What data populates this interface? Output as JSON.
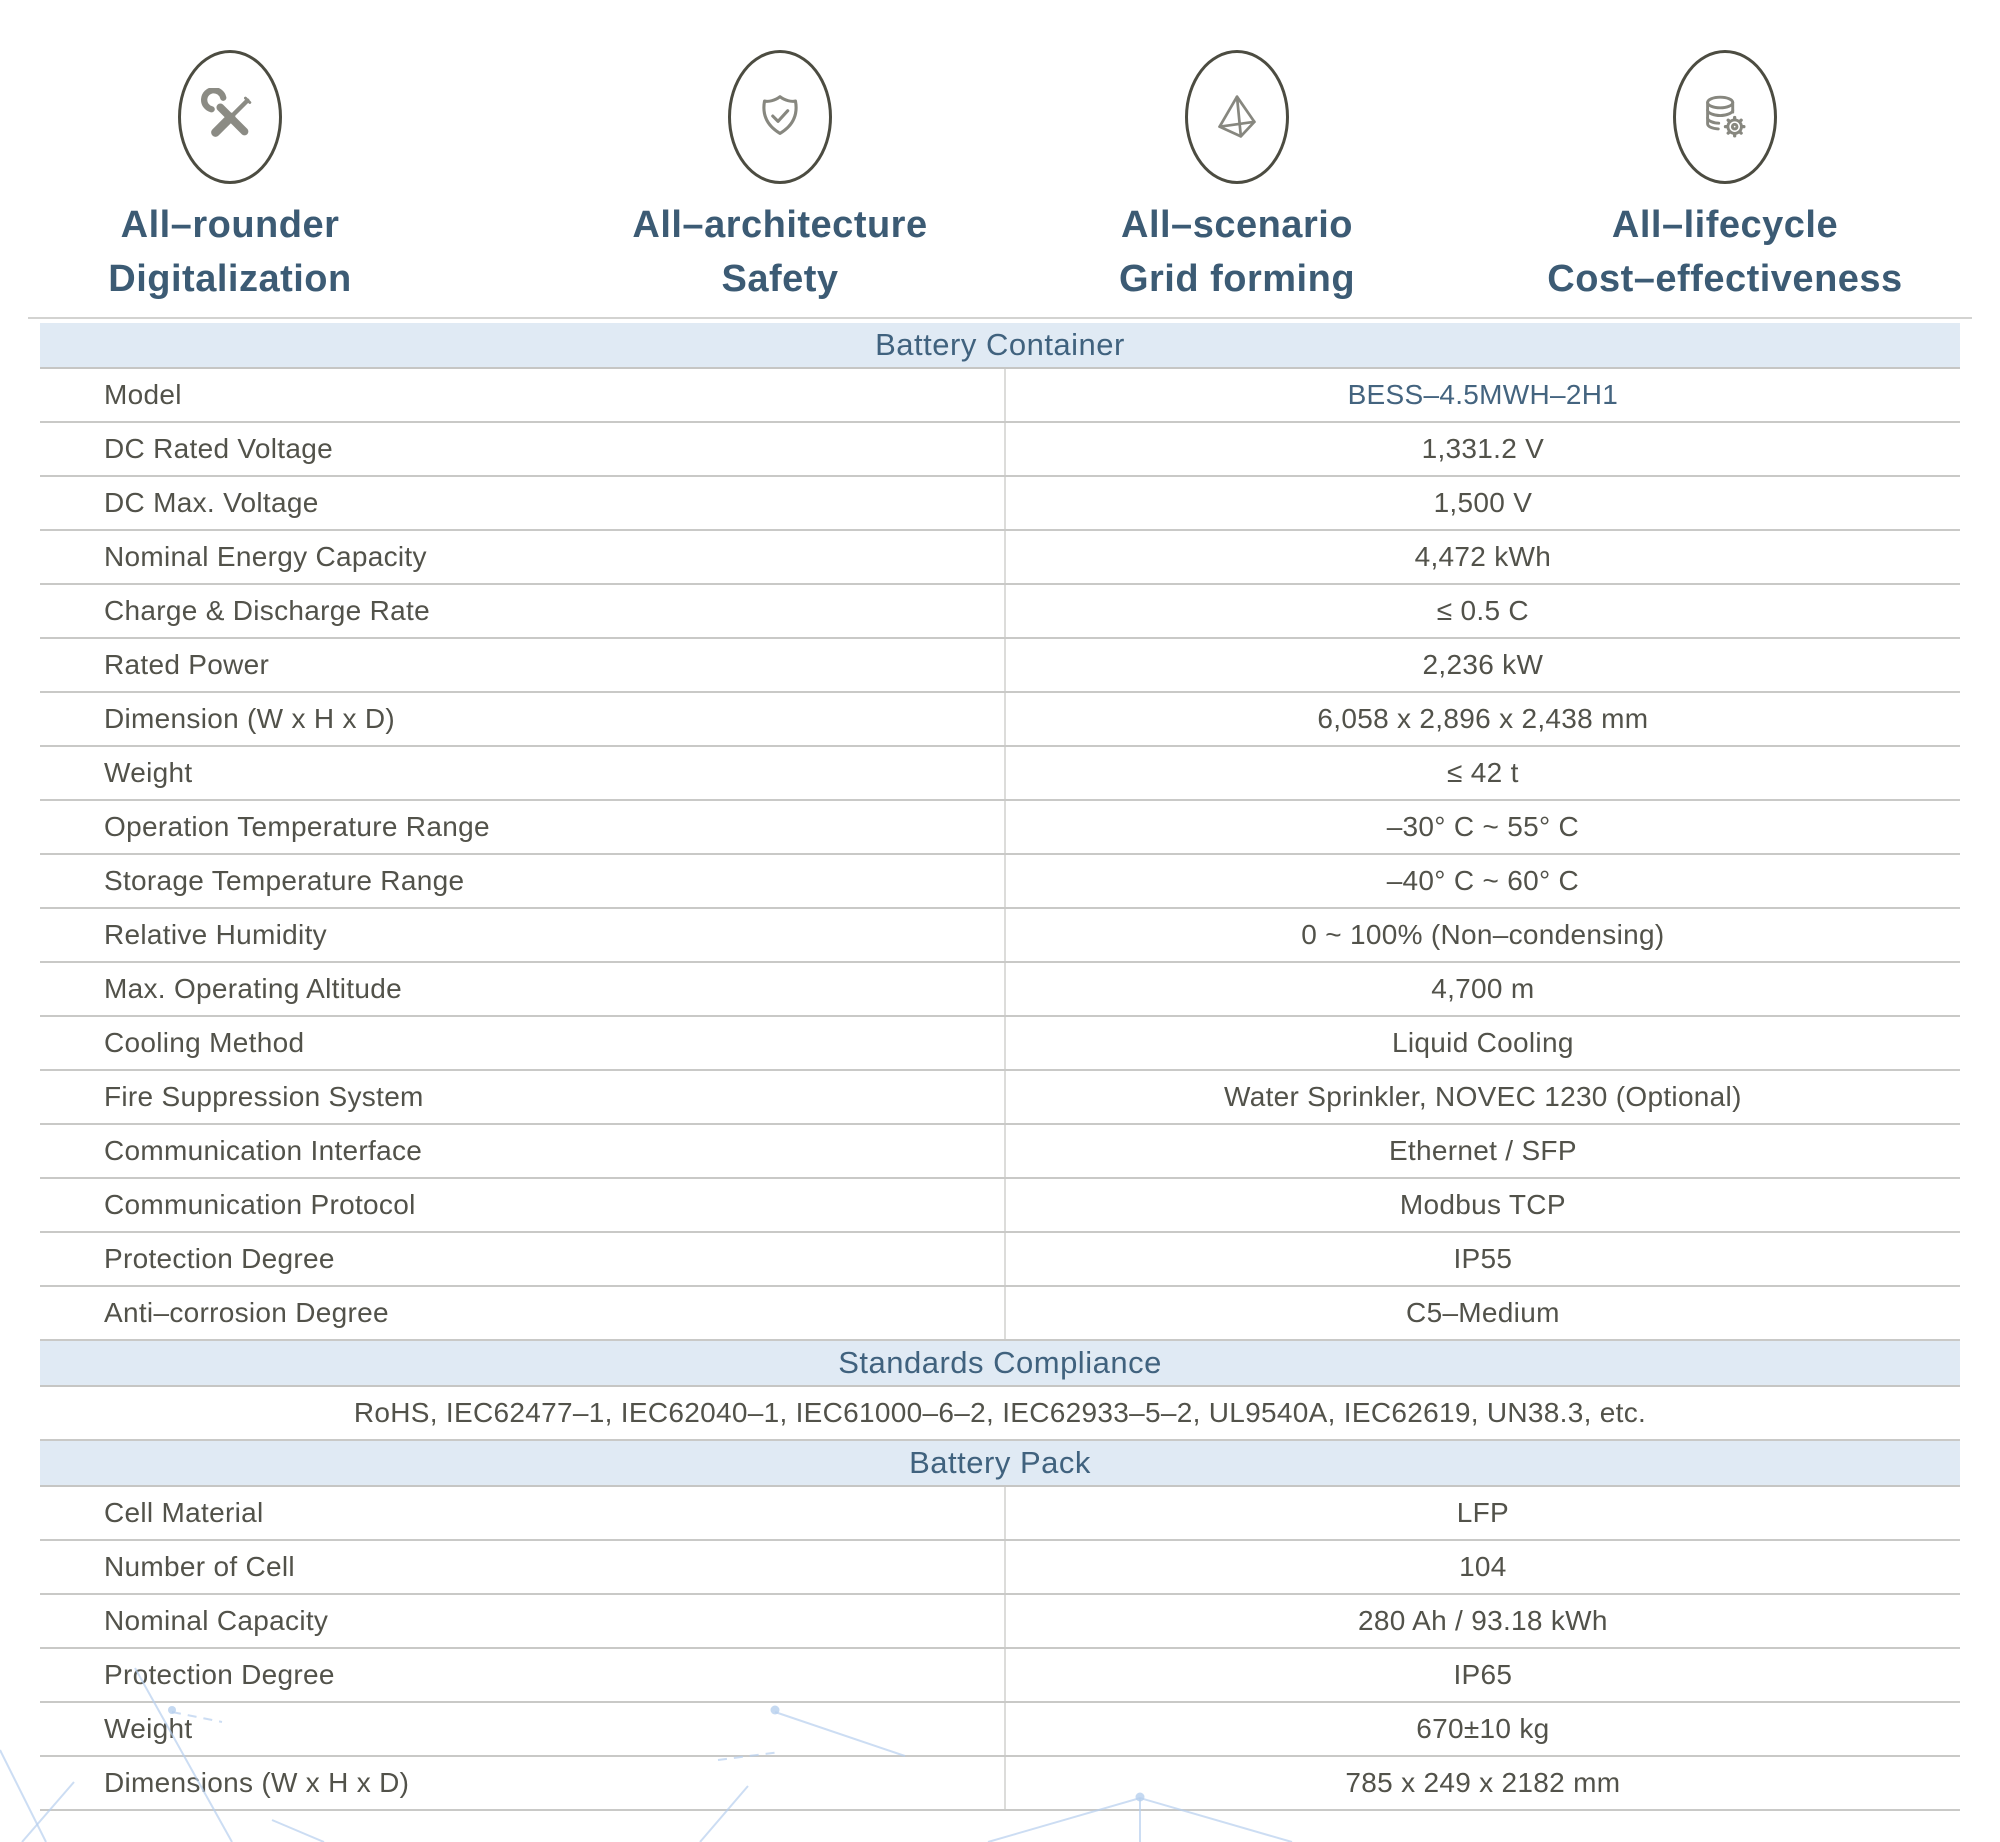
{
  "features": [
    {
      "icon": "shield-check-icon",
      "line1": "All–architecture",
      "line2": "Safety"
    },
    {
      "icon": "pyramid-icon",
      "line1": "All–scenario",
      "line2": "Grid forming"
    },
    {
      "icon": "database-gear-icon",
      "line1": "All–lifecycle",
      "line2": "Cost–effectiveness"
    },
    {
      "icon": "tools-icon",
      "line1": "All–rounder",
      "line2": "Digitalization"
    }
  ],
  "table": {
    "sections": [
      {
        "type": "header",
        "title": "Battery Container"
      },
      {
        "type": "rows",
        "rows": [
          {
            "label": "Model",
            "value": "BESS–4.5MWH–2H1",
            "highlight": true
          },
          {
            "label": "DC Rated Voltage",
            "value": "1,331.2 V"
          },
          {
            "label": "DC Max. Voltage",
            "value": "1,500 V"
          },
          {
            "label": "Nominal Energy Capacity",
            "value": "4,472 kWh"
          },
          {
            "label": "Charge & Discharge Rate",
            "value": "≤ 0.5 C"
          },
          {
            "label": "Rated Power",
            "value": "2,236 kW"
          },
          {
            "label": "Dimension (W x H x D)",
            "value": "6,058 x 2,896 x 2,438 mm"
          },
          {
            "label": "Weight",
            "value": "≤ 42 t"
          },
          {
            "label": "Operation Temperature Range",
            "value": "–30° C ~ 55° C"
          },
          {
            "label": "Storage Temperature Range",
            "value": "–40° C ~ 60° C"
          },
          {
            "label": "Relative Humidity",
            "value": "0 ~ 100% (Non–condensing)"
          },
          {
            "label": "Max. Operating Altitude",
            "value": "4,700 m"
          },
          {
            "label": "Cooling Method",
            "value": "Liquid Cooling"
          },
          {
            "label": "Fire Suppression System",
            "value": "Water Sprinkler, NOVEC 1230 (Optional)"
          },
          {
            "label": "Communication Interface",
            "value": "Ethernet / SFP"
          },
          {
            "label": "Communication Protocol",
            "value": "Modbus TCP"
          },
          {
            "label": "Protection Degree",
            "value": "IP55"
          },
          {
            "label": "Anti–corrosion Degree",
            "value": "C5–Medium"
          }
        ]
      },
      {
        "type": "header",
        "title": "Standards Compliance"
      },
      {
        "type": "text",
        "text": "RoHS, IEC62477–1, IEC62040–1, IEC61000–6–2, IEC62933–5–2, UL9540A, IEC62619, UN38.3, etc."
      },
      {
        "type": "header",
        "title": "Battery Pack"
      },
      {
        "type": "rows",
        "rows": [
          {
            "label": "Cell Material",
            "value": "LFP"
          },
          {
            "label": "Number of Cell",
            "value": "104"
          },
          {
            "label": "Nominal Capacity",
            "value": "280 Ah / 93.18 kWh"
          },
          {
            "label": "Protection Degree",
            "value": "IP65"
          },
          {
            "label": "Weight",
            "value": "670±10 kg"
          },
          {
            "label": "Dimensions (W x H x D)",
            "value": "785 x 249 x 2182 mm"
          }
        ]
      }
    ]
  },
  "colors": {
    "accent_blue": "#3c5b74",
    "header_band_bg": "#e0eaf4",
    "header_band_text": "#40627e",
    "row_text": "#52524a",
    "model_value_text": "#44647f",
    "horizontal_border": "#c9c9c7",
    "vertical_divider": "#dcdcda",
    "icon_circle_stroke": "#4c4c41",
    "icon_glyph": "#87877f",
    "decor_line": "#b7cfee"
  }
}
